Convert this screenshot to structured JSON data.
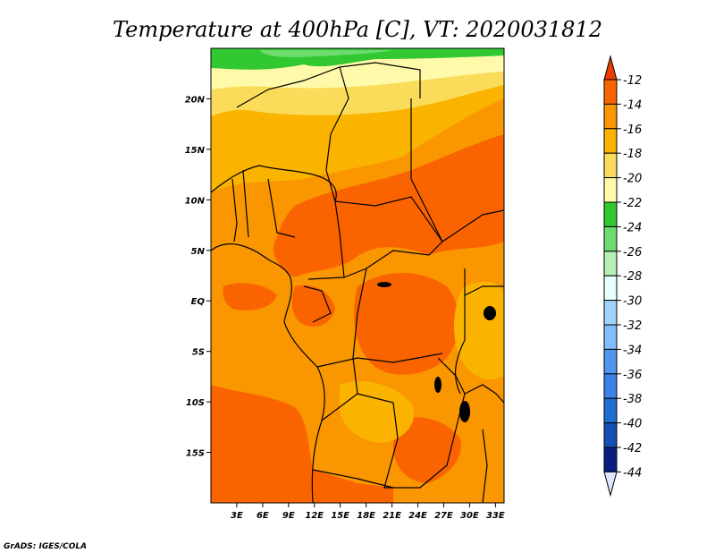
{
  "chart_data": {
    "type": "heatmap",
    "title": "Temperature at 400hPa [C], VT: 2020031812",
    "units": "C",
    "credit": "GrADS: IGES/COLA",
    "x_axis": {
      "range_deg_east": [
        0,
        34
      ],
      "ticks": [
        {
          "value": 3,
          "label": "3E"
        },
        {
          "value": 6,
          "label": "6E"
        },
        {
          "value": 9,
          "label": "9E"
        },
        {
          "value": 12,
          "label": "12E"
        },
        {
          "value": 15,
          "label": "15E"
        },
        {
          "value": 18,
          "label": "18E"
        },
        {
          "value": 21,
          "label": "21E"
        },
        {
          "value": 24,
          "label": "24E"
        },
        {
          "value": 27,
          "label": "27E"
        },
        {
          "value": 30,
          "label": "30E"
        },
        {
          "value": 33,
          "label": "33E"
        }
      ]
    },
    "y_axis": {
      "range_deg_north": [
        -20,
        25
      ],
      "ticks": [
        {
          "value": 20,
          "label": "20N"
        },
        {
          "value": 15,
          "label": "15N"
        },
        {
          "value": 10,
          "label": "10N"
        },
        {
          "value": 5,
          "label": "5N"
        },
        {
          "value": 0,
          "label": "EQ"
        },
        {
          "value": -5,
          "label": "5S"
        },
        {
          "value": -10,
          "label": "10S"
        },
        {
          "value": -15,
          "label": "15S"
        }
      ]
    },
    "colorbar": {
      "levels": [
        -12,
        -14,
        -16,
        -18,
        -20,
        -22,
        -24,
        -26,
        -28,
        -30,
        -32,
        -34,
        -36,
        -38,
        -40,
        -42,
        -44
      ],
      "colors": [
        "#e83c00",
        "#fa6400",
        "#fa9600",
        "#fab400",
        "#fadc5a",
        "#fffaaa",
        "#32c832",
        "#6edc6e",
        "#b4f0b4",
        "#e6ffff",
        "#a0d2fa",
        "#82befa",
        "#5096f0",
        "#3c82e6",
        "#1e6ed2",
        "#1450b4",
        "#0a1e82",
        "#dce6ff"
      ]
    },
    "field_regions": [
      {
        "level": "< -22",
        "area": "northern edge near 24N-25N",
        "color": "#32c832"
      },
      {
        "level": "-22 to -20",
        "area": "north strip 21N-24N",
        "color": "#fffaaa"
      },
      {
        "level": "-20 to -18",
        "area": "15N-21N",
        "color": "#fadc5a"
      },
      {
        "level": "-18 to -16",
        "area": "north 10N-17N, local patches",
        "color": "#fab400"
      },
      {
        "level": "-16 to -14",
        "area": "most of domain",
        "color": "#fa9600"
      },
      {
        "level": "-14 to -12",
        "area": "central band 5N-12N and southwest",
        "color": "#fa6400"
      }
    ]
  }
}
